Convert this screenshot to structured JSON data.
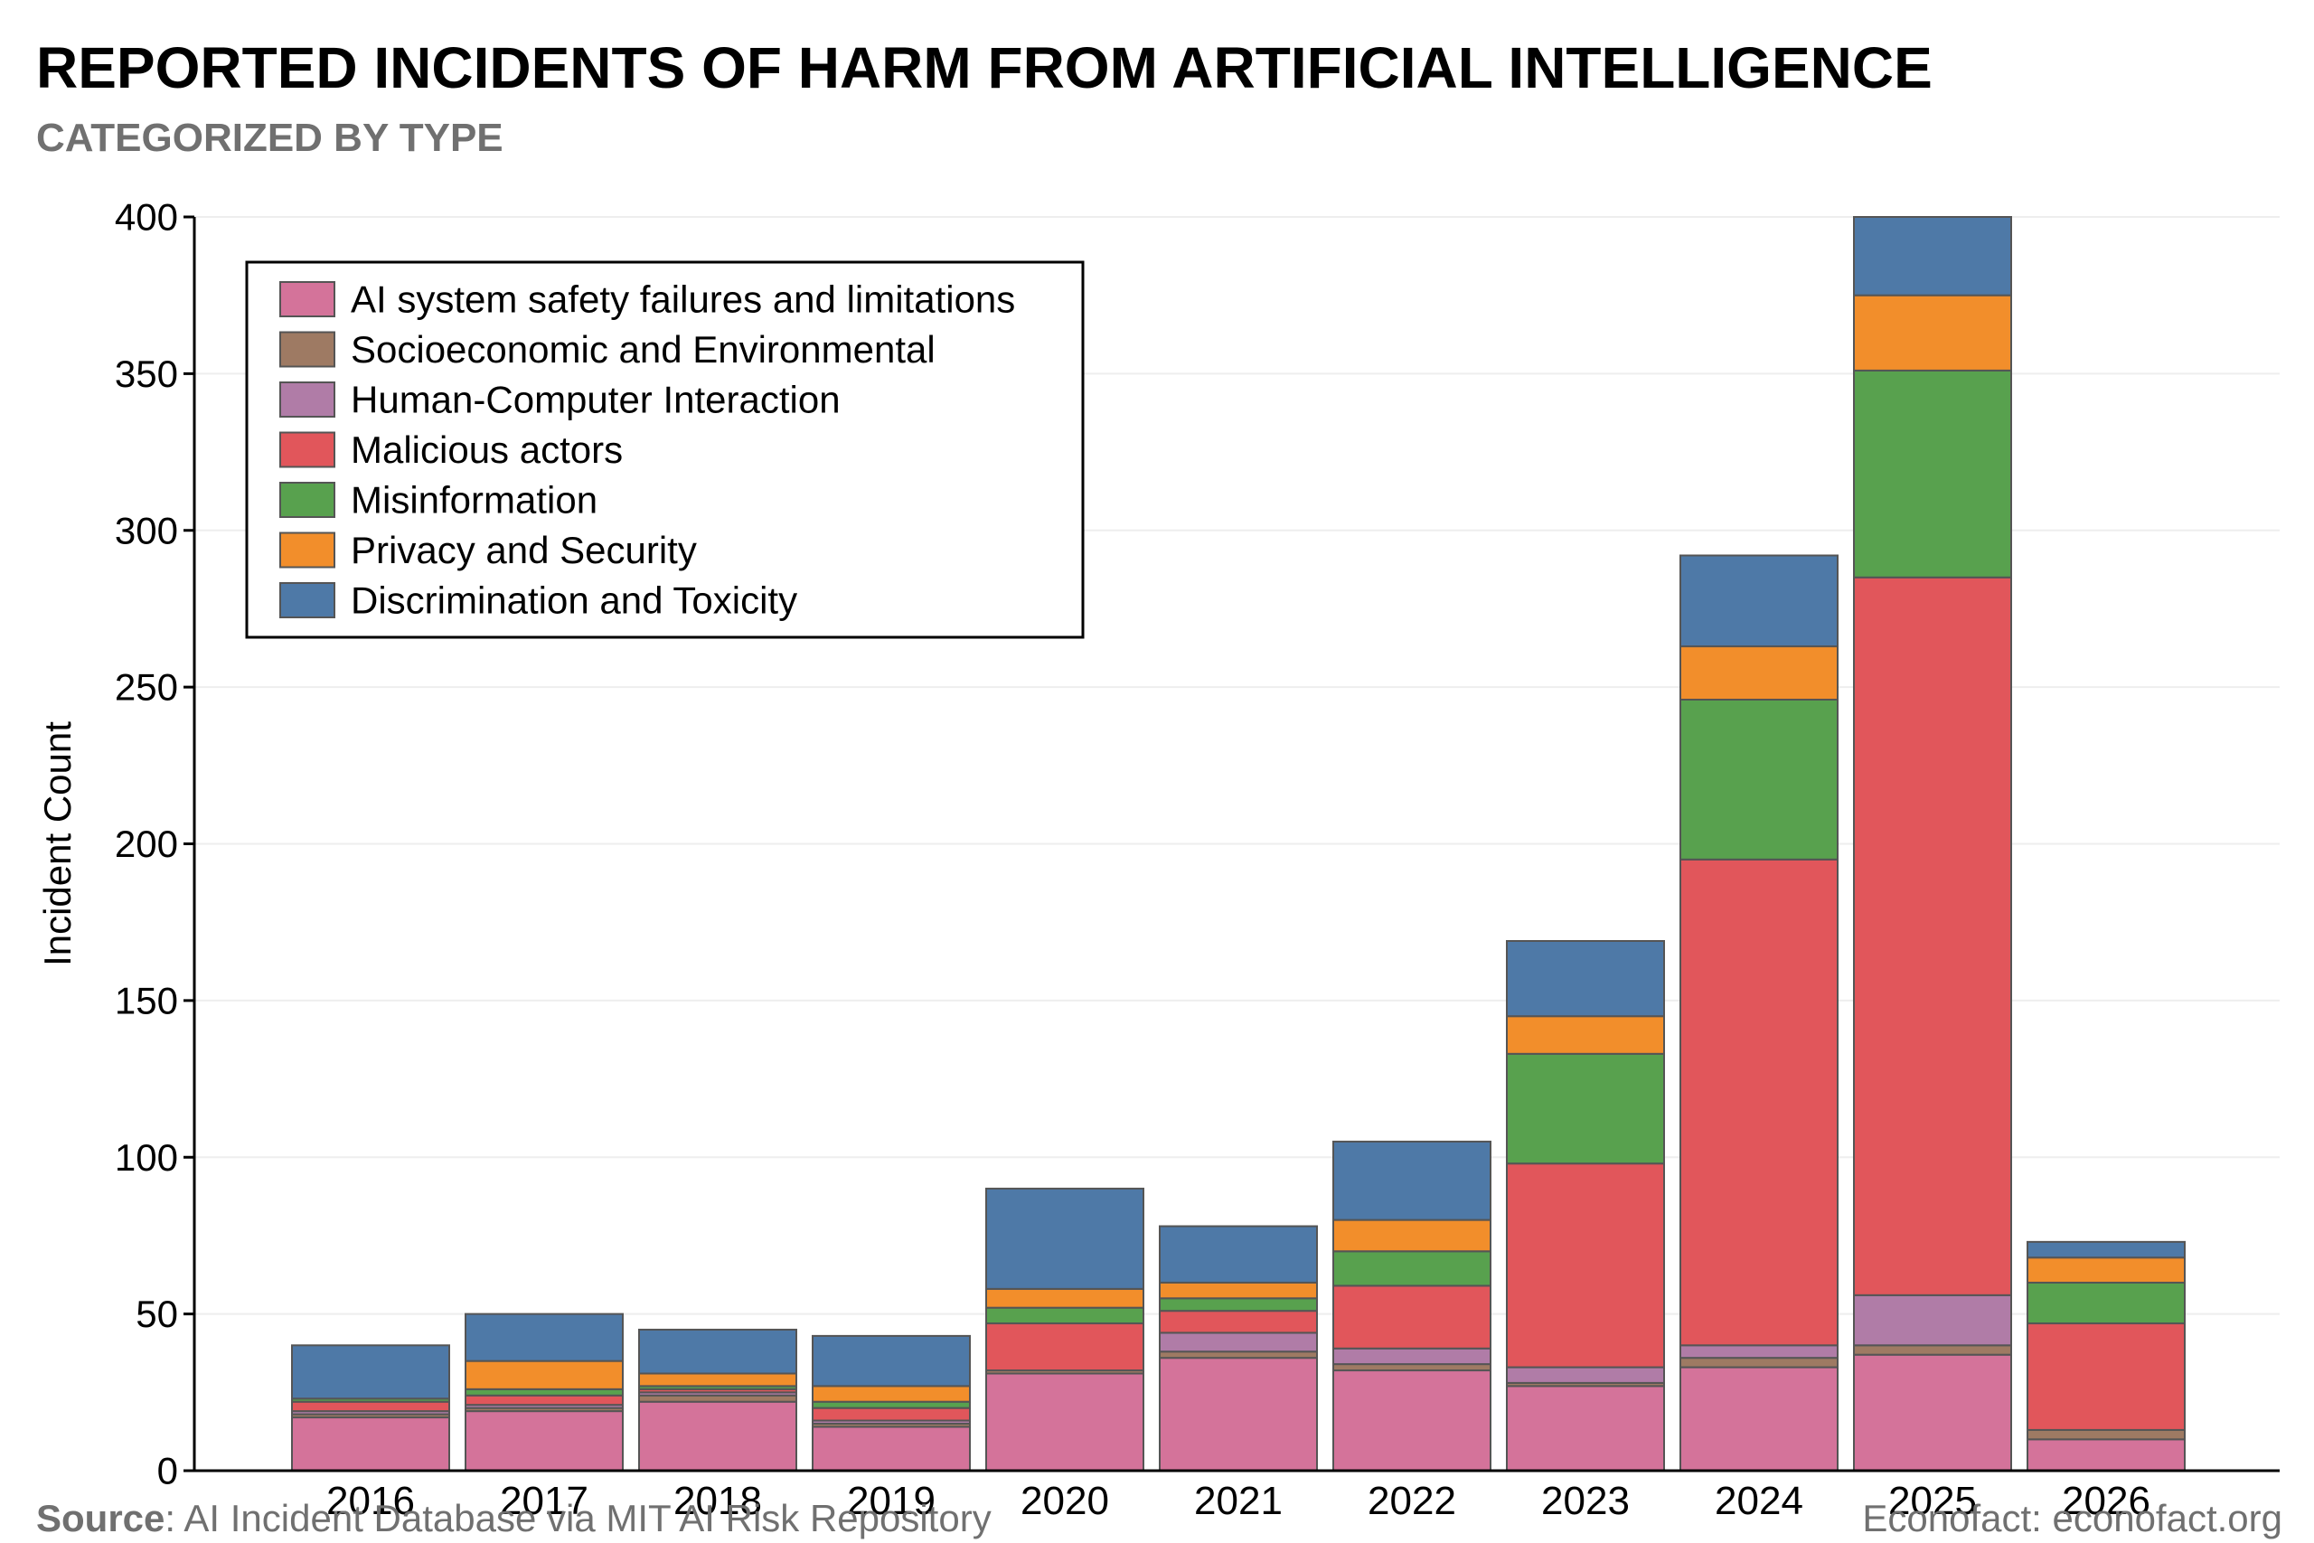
{
  "title": "REPORTED INCIDENTS OF HARM FROM ARTIFICIAL INTELLIGENCE",
  "subtitle": "CATEGORIZED BY TYPE",
  "footer": {
    "source_label": "Source",
    "source_text": ": AI Incident Database via MIT AI Risk Repository",
    "credit": "Econofact: econofact.org"
  },
  "chart_data": {
    "type": "bar",
    "stacked": true,
    "ylabel": "Incident Count",
    "xlabel": "",
    "ylim": [
      0,
      400
    ],
    "yticks": [
      0,
      50,
      100,
      150,
      200,
      250,
      300,
      350,
      400
    ],
    "grid": true,
    "legend_position": "top-left",
    "categories": [
      "2016",
      "2017",
      "2018",
      "2019",
      "2020",
      "2021",
      "2022",
      "2023",
      "2024",
      "2025",
      "2026"
    ],
    "series": [
      {
        "name": "AI system safety failures and limitations",
        "color": "#d4739a",
        "values": [
          17,
          19,
          22,
          14,
          31,
          36,
          32,
          27,
          33,
          37,
          10
        ]
      },
      {
        "name": "Socioeconomic and Environmental",
        "color": "#9e7a63",
        "values": [
          1,
          1,
          2,
          1,
          1,
          2,
          2,
          1,
          3,
          3,
          3
        ]
      },
      {
        "name": "Human-Computer Interaction",
        "color": "#b07ca7",
        "values": [
          1,
          1,
          1,
          1,
          0,
          6,
          5,
          5,
          4,
          16,
          0
        ]
      },
      {
        "name": "Malicious actors",
        "color": "#e1565b",
        "values": [
          3,
          3,
          1,
          4,
          15,
          7,
          20,
          65,
          155,
          229,
          34
        ]
      },
      {
        "name": "Misinformation",
        "color": "#58a14e",
        "values": [
          1,
          2,
          1,
          2,
          5,
          4,
          11,
          35,
          51,
          66,
          13
        ]
      },
      {
        "name": "Privacy and Security",
        "color": "#f28e2b",
        "values": [
          0,
          9,
          4,
          5,
          6,
          5,
          10,
          12,
          17,
          24,
          8
        ]
      },
      {
        "name": "Discrimination and Toxicity",
        "color": "#4e79a7",
        "values": [
          17,
          15,
          14,
          16,
          32,
          18,
          25,
          24,
          29,
          25,
          5
        ]
      }
    ]
  }
}
